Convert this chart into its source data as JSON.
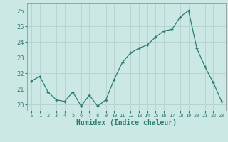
{
  "x": [
    0,
    1,
    2,
    3,
    4,
    5,
    6,
    7,
    8,
    9,
    10,
    11,
    12,
    13,
    14,
    15,
    16,
    17,
    18,
    19,
    20,
    21,
    22,
    23
  ],
  "y": [
    21.5,
    21.8,
    20.8,
    20.3,
    20.2,
    20.8,
    19.9,
    20.6,
    19.9,
    20.3,
    21.6,
    22.7,
    23.3,
    23.6,
    23.8,
    24.3,
    24.7,
    24.8,
    25.6,
    26.0,
    23.6,
    22.4,
    21.4,
    20.2
  ],
  "line_color": "#2d7d6e",
  "marker": "+",
  "marker_size": 3,
  "bg_color": "#cce8e4",
  "grid_color": "#b8d4d0",
  "xlabel": "Humidex (Indice chaleur)",
  "ylabel_ticks": [
    20,
    21,
    22,
    23,
    24,
    25,
    26
  ],
  "xlim": [
    -0.5,
    23.5
  ],
  "ylim": [
    19.6,
    26.5
  ]
}
